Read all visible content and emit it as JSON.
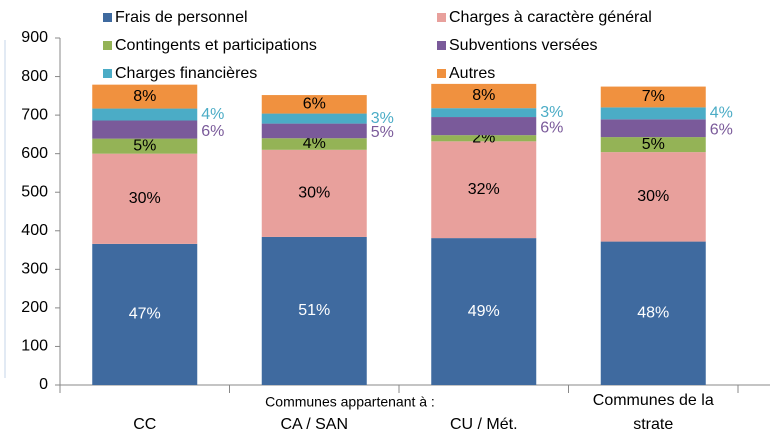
{
  "chart_data": {
    "type": "stacked_bar",
    "x_label": "Communes appartenant à :",
    "categories": [
      "CC",
      "CA / SAN",
      "CU / Mét.",
      "Communes de la strate"
    ],
    "ylim": [
      0,
      900
    ],
    "yticks": [
      0,
      100,
      200,
      300,
      400,
      500,
      600,
      700,
      800,
      900
    ],
    "legend": "top",
    "series": [
      {
        "name": "Frais de personnel",
        "color": "#3f6a9f",
        "values": [
          366,
          384,
          381,
          372
        ],
        "share_labels": [
          "47%",
          "51%",
          "49%",
          "48%"
        ],
        "label_position": "inside"
      },
      {
        "name": "Charges à caractère général",
        "color": "#e8a09c",
        "values": [
          234,
          226,
          251,
          232
        ],
        "share_labels": [
          "30%",
          "30%",
          "32%",
          "30%"
        ],
        "label_position": "inside"
      },
      {
        "name": "Contingents et participations",
        "color": "#94b356",
        "values": [
          39,
          30,
          16,
          39
        ],
        "share_labels": [
          "5%",
          "4%",
          "2%",
          "5%"
        ],
        "label_position": "inside"
      },
      {
        "name": "Subventions versées",
        "color": "#7a5a9a",
        "values": [
          47,
          38,
          47,
          46
        ],
        "share_labels": [
          "6%",
          "5%",
          "6%",
          "6%"
        ],
        "label_position": "outside"
      },
      {
        "name": "Charges financières",
        "color": "#4bacc6",
        "values": [
          31,
          26,
          23,
          31
        ],
        "share_labels": [
          "4%",
          "3%",
          "3%",
          "4%"
        ],
        "label_position": "outside"
      },
      {
        "name": "Autres",
        "color": "#f0913f",
        "values": [
          62,
          48,
          63,
          54
        ],
        "share_labels": [
          "8%",
          "6%",
          "8%",
          "7%"
        ],
        "label_position": "inside"
      }
    ]
  }
}
